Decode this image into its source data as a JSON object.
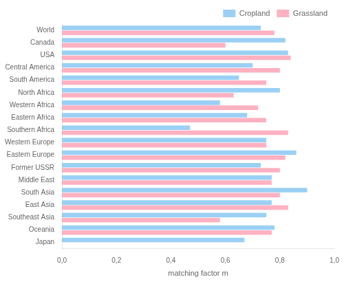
{
  "chart_data": {
    "type": "bar",
    "orientation": "horizontal",
    "categories": [
      "World",
      "Canada",
      "USA",
      "Central America",
      "South America",
      "North Africa",
      "Western Africa",
      "Eastern Africa",
      "Southern Africa",
      "Western Europe",
      "Eastern Europe",
      "Former USSR",
      "Middle East",
      "South Asia",
      "East Asia",
      "Southeast Asia",
      "Oceania",
      "Japan"
    ],
    "series": [
      {
        "name": "Cropland",
        "values": [
          0.73,
          0.82,
          0.83,
          0.7,
          0.65,
          0.8,
          0.58,
          0.68,
          0.47,
          0.75,
          0.86,
          0.73,
          0.77,
          0.9,
          0.77,
          0.75,
          0.78,
          0.67
        ]
      },
      {
        "name": "Grassland",
        "values": [
          0.78,
          0.6,
          0.84,
          0.8,
          0.75,
          0.63,
          0.72,
          0.75,
          0.83,
          0.75,
          0.82,
          0.8,
          0.77,
          0.8,
          0.83,
          0.58,
          0.77,
          0.0
        ]
      }
    ],
    "xlabel": "matching factor m",
    "xlim": [
      0.0,
      1.0
    ],
    "xticks": [
      {
        "value": 0.0,
        "label": "0,0"
      },
      {
        "value": 0.2,
        "label": "0,2"
      },
      {
        "value": 0.4,
        "label": "0,4"
      },
      {
        "value": 0.6,
        "label": "0,6"
      },
      {
        "value": 0.8,
        "label": "0,8"
      },
      {
        "value": 1.0,
        "label": "1,0"
      }
    ],
    "grid": false,
    "legend": "upper right"
  }
}
